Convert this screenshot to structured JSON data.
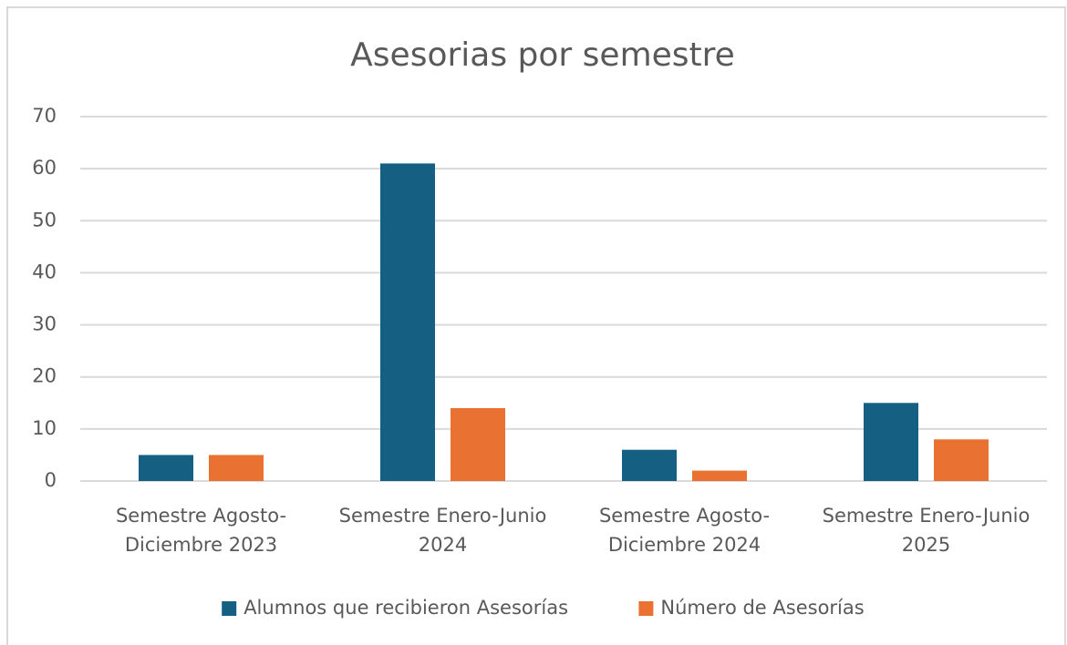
{
  "chart_data": {
    "type": "bar",
    "title": "Asesorias por semestre",
    "categories": [
      "Semestre Agosto-Diciembre 2023",
      "Semestre Enero-Junio 2024",
      "Semestre Agosto-Diciembre 2024",
      "Semestre Enero-Junio 2025"
    ],
    "series": [
      {
        "name": "Alumnos que recibieron Asesorías",
        "color": "#156082",
        "values": [
          5,
          61,
          6,
          15
        ]
      },
      {
        "name": "Número de Asesorías",
        "color": "#e97132",
        "values": [
          5,
          14,
          2,
          8
        ]
      }
    ],
    "ylim": [
      0,
      70
    ],
    "yticks": [
      0,
      10,
      20,
      30,
      40,
      50,
      60,
      70
    ],
    "grid": true,
    "legend": "bottom"
  }
}
